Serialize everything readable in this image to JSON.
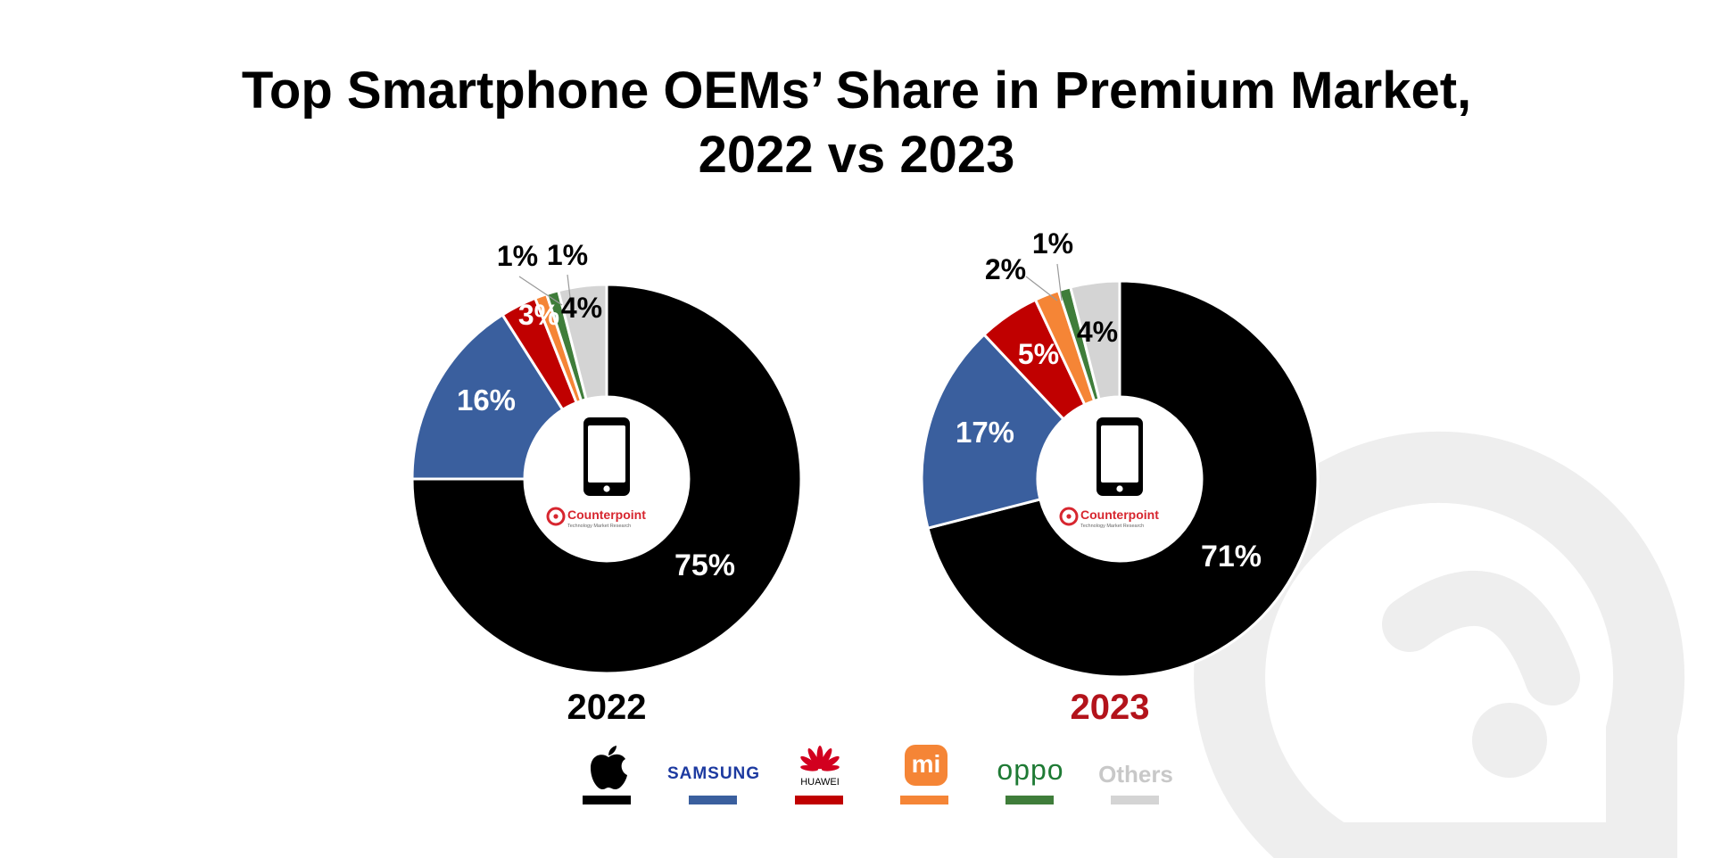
{
  "title_line1": "Top Smartphone OEMs’ Share in Premium Market,",
  "title_line2": "2022 vs 2023",
  "center_brand": "Counterpoint",
  "center_tagline": "Technology Market Research",
  "colors": {
    "apple": "#000000",
    "samsung": "#3a5f9e",
    "huawei": "#c00000",
    "xiaomi": "#f58536",
    "oppo": "#3f7d3a",
    "others": "#d4d4d4",
    "year_2023": "#b3131b",
    "watermark": "#eeeeee"
  },
  "legend": [
    {
      "brand": "Apple",
      "icon": "apple-logo-icon",
      "text": "",
      "color": "#000000"
    },
    {
      "brand": "Samsung",
      "icon": "samsung-logo-icon",
      "text": "SAMSUNG",
      "color": "#3a5f9e"
    },
    {
      "brand": "Huawei",
      "icon": "huawei-logo-icon",
      "text": "HUAWEI",
      "color": "#c00000"
    },
    {
      "brand": "Xiaomi",
      "icon": "xiaomi-logo-icon",
      "text": "mi",
      "color": "#f58536"
    },
    {
      "brand": "Oppo",
      "icon": "oppo-logo-icon",
      "text": "oppo",
      "color": "#3f7d3a"
    },
    {
      "brand": "Others",
      "icon": "",
      "text": "Others",
      "color": "#d4d4d4"
    }
  ],
  "chart_data": [
    {
      "type": "pie",
      "variant": "donut",
      "title": "2022",
      "categories": [
        "Apple",
        "Samsung",
        "Huawei",
        "Xiaomi",
        "Oppo",
        "Others"
      ],
      "values": [
        75,
        16,
        3,
        1,
        1,
        4
      ],
      "labels": [
        "75%",
        "16%",
        "3%",
        "1%",
        "1%",
        "4%"
      ]
    },
    {
      "type": "pie",
      "variant": "donut",
      "title": "2023",
      "categories": [
        "Apple",
        "Samsung",
        "Huawei",
        "Xiaomi",
        "Oppo",
        "Others"
      ],
      "values": [
        71,
        17,
        5,
        2,
        1,
        4
      ],
      "labels": [
        "71%",
        "17%",
        "5%",
        "2%",
        "1%",
        "4%"
      ]
    }
  ]
}
